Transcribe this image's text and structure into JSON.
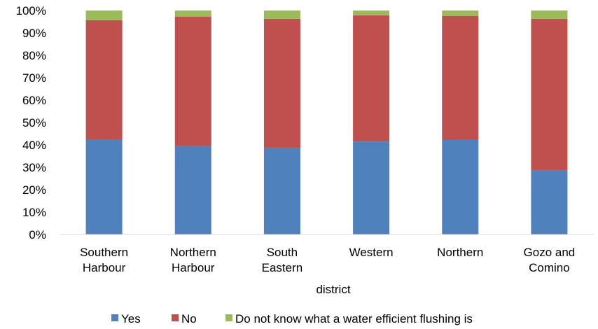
{
  "chart_data": {
    "type": "bar",
    "stacked": true,
    "percent": true,
    "categories": [
      [
        "Southern",
        "Harbour"
      ],
      [
        "Northern",
        "Harbour"
      ],
      [
        "South",
        "Eastern"
      ],
      [
        "Western"
      ],
      [
        "Northern"
      ],
      [
        "Gozo and",
        "Comino"
      ]
    ],
    "series": [
      {
        "name": "Yes",
        "color": "#4f81bd",
        "values": [
          42.5,
          39.5,
          38.5,
          41.5,
          42.2,
          28.5
        ]
      },
      {
        "name": "No",
        "color": "#c0504d",
        "values": [
          53.2,
          57.8,
          57.8,
          56.3,
          55.4,
          67.8
        ]
      },
      {
        "name": "Do not know what a water efficient flushing is",
        "color": "#9bbb59",
        "values": [
          4.3,
          2.7,
          3.7,
          2.2,
          2.4,
          3.7
        ]
      }
    ],
    "ylim": [
      0,
      100
    ],
    "yticks": [
      "0%",
      "10%",
      "20%",
      "30%",
      "40%",
      "50%",
      "60%",
      "70%",
      "80%",
      "90%",
      "100%"
    ],
    "xlabel": "district",
    "ylabel": "",
    "grid": false,
    "legend_position": "bottom"
  }
}
